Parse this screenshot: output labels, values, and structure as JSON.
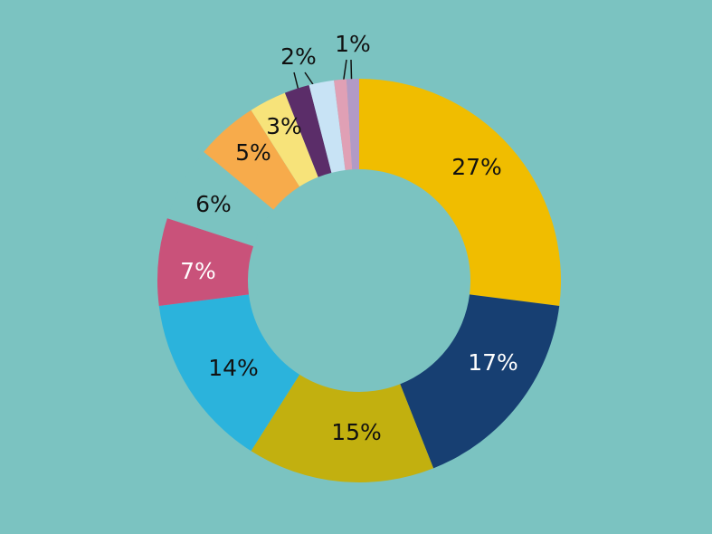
{
  "chart_data": {
    "type": "donut",
    "values": [
      27,
      17,
      15,
      14,
      7,
      6,
      5,
      3,
      2,
      2,
      1,
      1
    ],
    "value_labels": [
      "27%",
      "17%",
      "15%",
      "14%",
      "7%",
      "6%",
      "5%",
      "3%",
      "2%",
      null,
      "1%",
      null
    ],
    "colors": [
      "#f0bd00",
      "#173f72",
      "#c2b00f",
      "#2bb3dc",
      "#c9527a",
      "#7bc3c1",
      "#f7ab4b",
      "#f7e37a",
      "#5b2d69",
      "#c8e3f5",
      "#e0a0b5",
      "#b29ac6"
    ]
  }
}
